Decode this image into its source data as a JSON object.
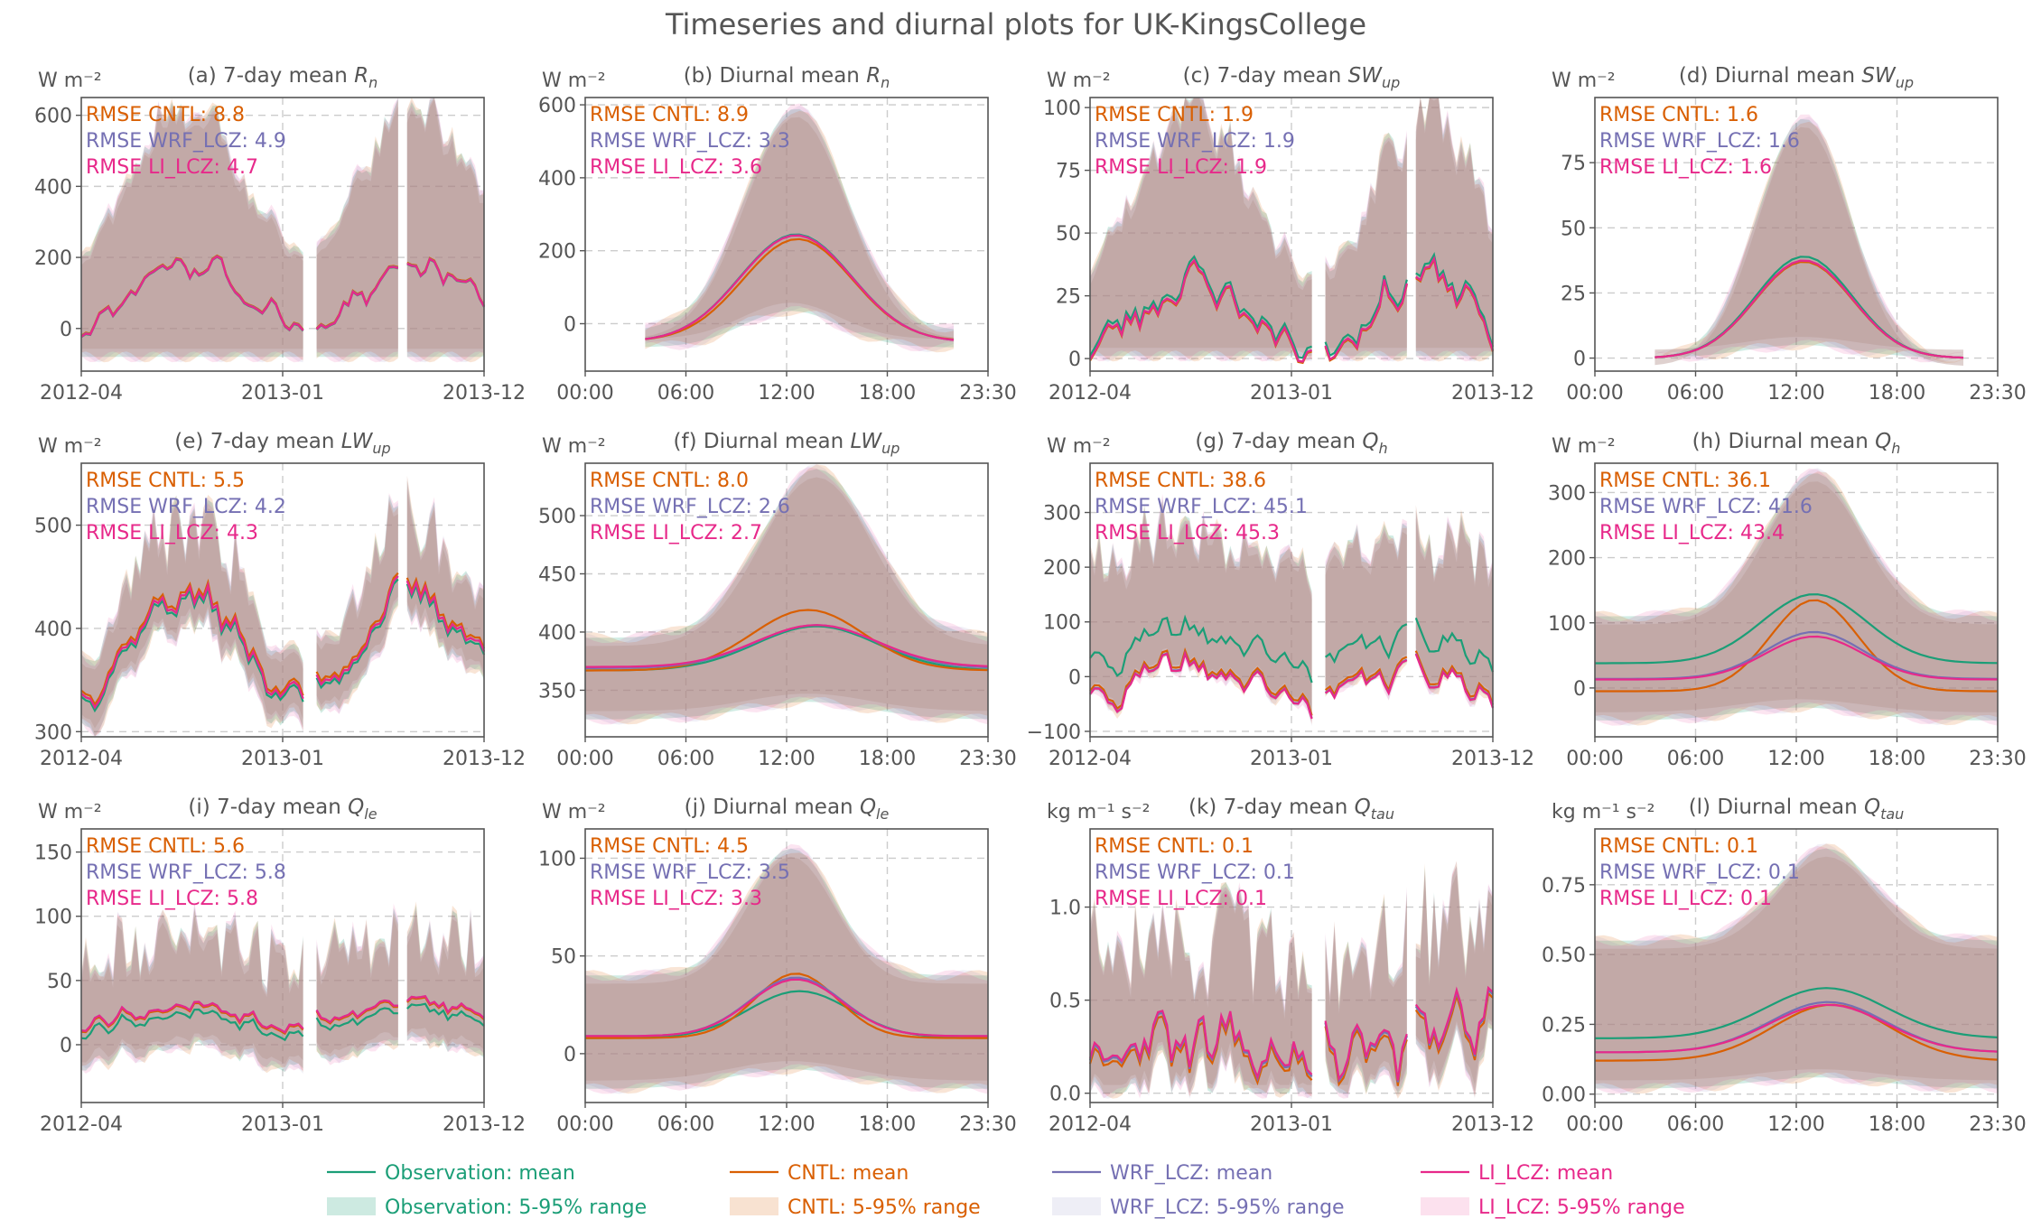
{
  "title": "Timeseries and diurnal plots for UK-KingsCollege",
  "colors": {
    "Observation": "#1b9e77",
    "CNTL": "#d95f02",
    "WRF_LCZ": "#7570b3",
    "LI_LCZ": "#e7298a",
    "text": "#555555",
    "grid": "#cccccc"
  },
  "legend": [
    {
      "series": "Observation",
      "mean_label": "Observation: mean",
      "range_label": "Observation: 5-95% range"
    },
    {
      "series": "CNTL",
      "mean_label": "CNTL: mean",
      "range_label": "CNTL: 5-95% range"
    },
    {
      "series": "WRF_LCZ",
      "mean_label": "WRF_LCZ: mean",
      "range_label": "WRF_LCZ: 5-95% range"
    },
    {
      "series": "LI_LCZ",
      "mean_label": "LI_LCZ: mean",
      "range_label": "LI_LCZ: 5-95% range"
    }
  ],
  "chart_data": [
    {
      "type": "line",
      "title": "(a) 7-day mean Rn",
      "title_base": "(a) 7-day mean ",
      "var": "R",
      "sub": "n",
      "unit": "W m⁻²",
      "kind": "timeseries",
      "xticks": [
        "2012-04",
        "2013-01",
        "2013-12"
      ],
      "ylim": [
        -120,
        650
      ],
      "yticks": [
        0,
        200,
        400,
        600
      ],
      "ytick_labels": [
        "0",
        "200",
        "400",
        "600"
      ],
      "rmse": [
        {
          "series": "CNTL",
          "text": "RMSE CNTL: 8.8"
        },
        {
          "series": "WRF_LCZ",
          "text": "RMSE WRF_LCZ: 4.9"
        },
        {
          "series": "LI_LCZ",
          "text": "RMSE LI_LCZ: 4.7"
        }
      ]
    },
    {
      "type": "line",
      "title": "(b) Diurnal mean Rn",
      "title_base": "(b) Diurnal mean ",
      "var": "R",
      "sub": "n",
      "unit": "W m⁻²",
      "kind": "diurnal",
      "xticks": [
        "00:00",
        "06:00",
        "12:00",
        "18:00",
        "23:30"
      ],
      "ylim": [
        -130,
        620
      ],
      "yticks": [
        0,
        200,
        400,
        600
      ],
      "ytick_labels": [
        "0",
        "200",
        "400",
        "600"
      ],
      "rmse": [
        {
          "series": "CNTL",
          "text": "RMSE CNTL: 8.9"
        },
        {
          "series": "WRF_LCZ",
          "text": "RMSE WRF_LCZ: 3.3"
        },
        {
          "series": "LI_LCZ",
          "text": "RMSE LI_LCZ: 3.6"
        }
      ]
    },
    {
      "type": "line",
      "title": "(c) 7-day mean SWup",
      "title_base": "(c) 7-day mean ",
      "var": "SW",
      "sub": "up",
      "unit": "W m⁻²",
      "kind": "timeseries",
      "xticks": [
        "2012-04",
        "2013-01",
        "2013-12"
      ],
      "ylim": [
        -5,
        104
      ],
      "yticks": [
        0,
        25,
        50,
        75,
        100
      ],
      "ytick_labels": [
        "0",
        "25",
        "50",
        "75",
        "100"
      ],
      "rmse": [
        {
          "series": "CNTL",
          "text": "RMSE CNTL: 1.9"
        },
        {
          "series": "WRF_LCZ",
          "text": "RMSE WRF_LCZ: 1.9"
        },
        {
          "series": "LI_LCZ",
          "text": "RMSE LI_LCZ: 1.9"
        }
      ]
    },
    {
      "type": "line",
      "title": "(d) Diurnal mean SWup",
      "title_base": "(d) Diurnal mean ",
      "var": "SW",
      "sub": "up",
      "unit": "W m⁻²",
      "kind": "diurnal",
      "xticks": [
        "00:00",
        "06:00",
        "12:00",
        "18:00",
        "23:30"
      ],
      "ylim": [
        -5,
        100
      ],
      "yticks": [
        0,
        25,
        50,
        75
      ],
      "ytick_labels": [
        "0",
        "25",
        "50",
        "75"
      ],
      "rmse": [
        {
          "series": "CNTL",
          "text": "RMSE CNTL: 1.6"
        },
        {
          "series": "WRF_LCZ",
          "text": "RMSE WRF_LCZ: 1.6"
        },
        {
          "series": "LI_LCZ",
          "text": "RMSE LI_LCZ: 1.6"
        }
      ]
    },
    {
      "type": "line",
      "title": "(e) 7-day mean LWup",
      "title_base": "(e) 7-day mean ",
      "var": "LW",
      "sub": "up",
      "unit": "W m⁻²",
      "kind": "timeseries",
      "xticks": [
        "2012-04",
        "2013-01",
        "2013-12"
      ],
      "ylim": [
        295,
        560
      ],
      "yticks": [
        300,
        400,
        500
      ],
      "ytick_labels": [
        "300",
        "400",
        "500"
      ],
      "rmse": [
        {
          "series": "CNTL",
          "text": "RMSE CNTL: 5.5"
        },
        {
          "series": "WRF_LCZ",
          "text": "RMSE WRF_LCZ: 4.2"
        },
        {
          "series": "LI_LCZ",
          "text": "RMSE LI_LCZ: 4.3"
        }
      ]
    },
    {
      "type": "line",
      "title": "(f) Diurnal mean LWup",
      "title_base": "(f) Diurnal mean ",
      "var": "LW",
      "sub": "up",
      "unit": "W m⁻²",
      "kind": "diurnal",
      "xticks": [
        "00:00",
        "06:00",
        "12:00",
        "18:00",
        "23:30"
      ],
      "ylim": [
        310,
        545
      ],
      "yticks": [
        350,
        400,
        450,
        500
      ],
      "ytick_labels": [
        "350",
        "400",
        "450",
        "500"
      ],
      "rmse": [
        {
          "series": "CNTL",
          "text": "RMSE CNTL: 8.0"
        },
        {
          "series": "WRF_LCZ",
          "text": "RMSE WRF_LCZ: 2.6"
        },
        {
          "series": "LI_LCZ",
          "text": "RMSE LI_LCZ: 2.7"
        }
      ]
    },
    {
      "type": "line",
      "title": "(g) 7-day mean Qh",
      "title_base": "(g) 7-day mean ",
      "var": "Q",
      "sub": "h",
      "unit": "W m⁻²",
      "kind": "timeseries",
      "xticks": [
        "2012-04",
        "2013-01",
        "2013-12"
      ],
      "ylim": [
        -110,
        390
      ],
      "yticks": [
        -100,
        0,
        100,
        200,
        300
      ],
      "ytick_labels": [
        "−100",
        "0",
        "100",
        "200",
        "300"
      ],
      "rmse": [
        {
          "series": "CNTL",
          "text": "RMSE CNTL: 38.6"
        },
        {
          "series": "WRF_LCZ",
          "text": "RMSE WRF_LCZ: 45.1"
        },
        {
          "series": "LI_LCZ",
          "text": "RMSE LI_LCZ: 45.3"
        }
      ]
    },
    {
      "type": "line",
      "title": "(h) Diurnal mean Qh",
      "title_base": "(h) Diurnal mean ",
      "var": "Q",
      "sub": "h",
      "unit": "W m⁻²",
      "kind": "diurnal",
      "xticks": [
        "00:00",
        "06:00",
        "12:00",
        "18:00",
        "23:30"
      ],
      "ylim": [
        -75,
        345
      ],
      "yticks": [
        0,
        100,
        200,
        300
      ],
      "ytick_labels": [
        "0",
        "100",
        "200",
        "300"
      ],
      "rmse": [
        {
          "series": "CNTL",
          "text": "RMSE CNTL: 36.1"
        },
        {
          "series": "WRF_LCZ",
          "text": "RMSE WRF_LCZ: 41.6"
        },
        {
          "series": "LI_LCZ",
          "text": "RMSE LI_LCZ: 43.4"
        }
      ]
    },
    {
      "type": "line",
      "title": "(i) 7-day mean Qle",
      "title_base": "(i) 7-day mean ",
      "var": "Q",
      "sub": "le",
      "unit": "W m⁻²",
      "kind": "timeseries",
      "xticks": [
        "2012-04",
        "2013-01",
        "2013-12"
      ],
      "ylim": [
        -45,
        168
      ],
      "yticks": [
        0,
        50,
        100,
        150
      ],
      "ytick_labels": [
        "0",
        "50",
        "100",
        "150"
      ],
      "rmse": [
        {
          "series": "CNTL",
          "text": "RMSE CNTL: 5.6"
        },
        {
          "series": "WRF_LCZ",
          "text": "RMSE WRF_LCZ: 5.8"
        },
        {
          "series": "LI_LCZ",
          "text": "RMSE LI_LCZ: 5.8"
        }
      ]
    },
    {
      "type": "line",
      "title": "(j) Diurnal mean Qle",
      "title_base": "(j) Diurnal mean ",
      "var": "Q",
      "sub": "le",
      "unit": "W m⁻²",
      "kind": "diurnal",
      "xticks": [
        "00:00",
        "06:00",
        "12:00",
        "18:00",
        "23:30"
      ],
      "ylim": [
        -25,
        115
      ],
      "yticks": [
        0,
        50,
        100
      ],
      "ytick_labels": [
        "0",
        "50",
        "100"
      ],
      "rmse": [
        {
          "series": "CNTL",
          "text": "RMSE CNTL: 4.5"
        },
        {
          "series": "WRF_LCZ",
          "text": "RMSE WRF_LCZ: 3.5"
        },
        {
          "series": "LI_LCZ",
          "text": "RMSE LI_LCZ: 3.3"
        }
      ]
    },
    {
      "type": "line",
      "title": "(k) 7-day mean Qtau",
      "title_base": "(k) 7-day mean ",
      "var": "Q",
      "sub": "tau",
      "unit": "kg m⁻¹ s⁻²",
      "kind": "timeseries",
      "xticks": [
        "2012-04",
        "2013-01",
        "2013-12"
      ],
      "ylim": [
        -0.05,
        1.42
      ],
      "yticks": [
        0,
        0.5,
        1.0
      ],
      "ytick_labels": [
        "0.0",
        "0.5",
        "1.0"
      ],
      "rmse": [
        {
          "series": "CNTL",
          "text": "RMSE CNTL: 0.1"
        },
        {
          "series": "WRF_LCZ",
          "text": "RMSE WRF_LCZ: 0.1"
        },
        {
          "series": "LI_LCZ",
          "text": "RMSE LI_LCZ: 0.1"
        }
      ]
    },
    {
      "type": "line",
      "title": "(l) Diurnal mean Qtau",
      "title_base": "(l) Diurnal mean ",
      "var": "Q",
      "sub": "tau",
      "unit": "kg m⁻¹ s⁻²",
      "kind": "diurnal",
      "xticks": [
        "00:00",
        "06:00",
        "12:00",
        "18:00",
        "23:30"
      ],
      "ylim": [
        -0.03,
        0.95
      ],
      "yticks": [
        0,
        0.25,
        0.5,
        0.75
      ],
      "ytick_labels": [
        "0.00",
        "0.25",
        "0.50",
        "0.75"
      ],
      "rmse": [
        {
          "series": "CNTL",
          "text": "RMSE CNTL: 0.1"
        },
        {
          "series": "WRF_LCZ",
          "text": "RMSE WRF_LCZ: 0.1"
        },
        {
          "series": "LI_LCZ",
          "text": "RMSE LI_LCZ: 0.1"
        }
      ]
    }
  ]
}
